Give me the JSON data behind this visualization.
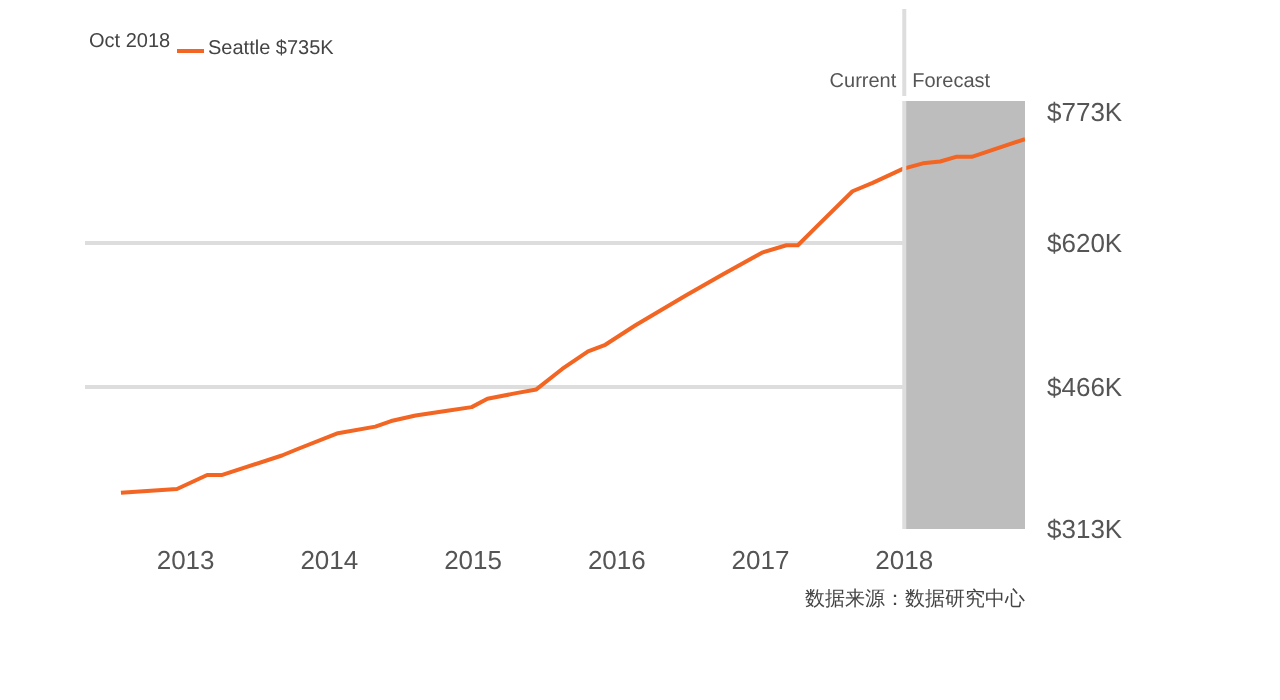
{
  "chart_data": {
    "type": "line",
    "legend_title": "Oct 2018",
    "x": [
      2012.55,
      2012.94,
      2013.15,
      2013.25,
      2013.67,
      2013.78,
      2014.06,
      2014.32,
      2014.43,
      2014.6,
      2014.82,
      2014.99,
      2015.1,
      2015.3,
      2015.44,
      2015.62,
      2015.8,
      2015.92,
      2016.13,
      2016.48,
      2016.73,
      2017.01,
      2017.18,
      2017.26,
      2017.39,
      2017.64,
      2017.78,
      2017.99,
      2018.13,
      2018.25,
      2018.36,
      2018.47,
      2018.84
    ],
    "series": [
      {
        "name": "Seattle $735K",
        "color": "#f26522",
        "values": [
          352,
          356,
          371,
          371,
          392,
          399,
          416,
          423,
          429,
          435,
          440,
          444,
          453,
          459,
          463,
          485,
          504,
          511,
          532,
          564,
          586,
          610,
          618,
          618,
          638,
          676,
          685,
          700,
          706,
          708,
          713,
          713,
          732
        ]
      }
    ],
    "xlim": [
      2012.3,
      2018.84
    ],
    "xticks": [
      2013,
      2014,
      2015,
      2016,
      2017,
      2018
    ],
    "ylim": [
      313,
      773
    ],
    "yticks": [
      {
        "value": 313,
        "label": "$313K"
      },
      {
        "value": 466,
        "label": "$466K"
      },
      {
        "value": 620,
        "label": "$620K"
      },
      {
        "value": 773,
        "label": "$773K"
      }
    ],
    "grid": "y",
    "legend": "top left",
    "marker": "none",
    "line_style": "solid",
    "ref_lines": [
      {
        "axis": "x",
        "value": 2018,
        "label": "Current",
        "color": "#dddddd"
      }
    ],
    "bands": [
      {
        "axis": "x",
        "from": 2018,
        "to": 2018.84,
        "label": "Forecast",
        "color": "#bdbdbd"
      }
    ],
    "annotations": [
      "数据来源：数据研究中心"
    ]
  }
}
